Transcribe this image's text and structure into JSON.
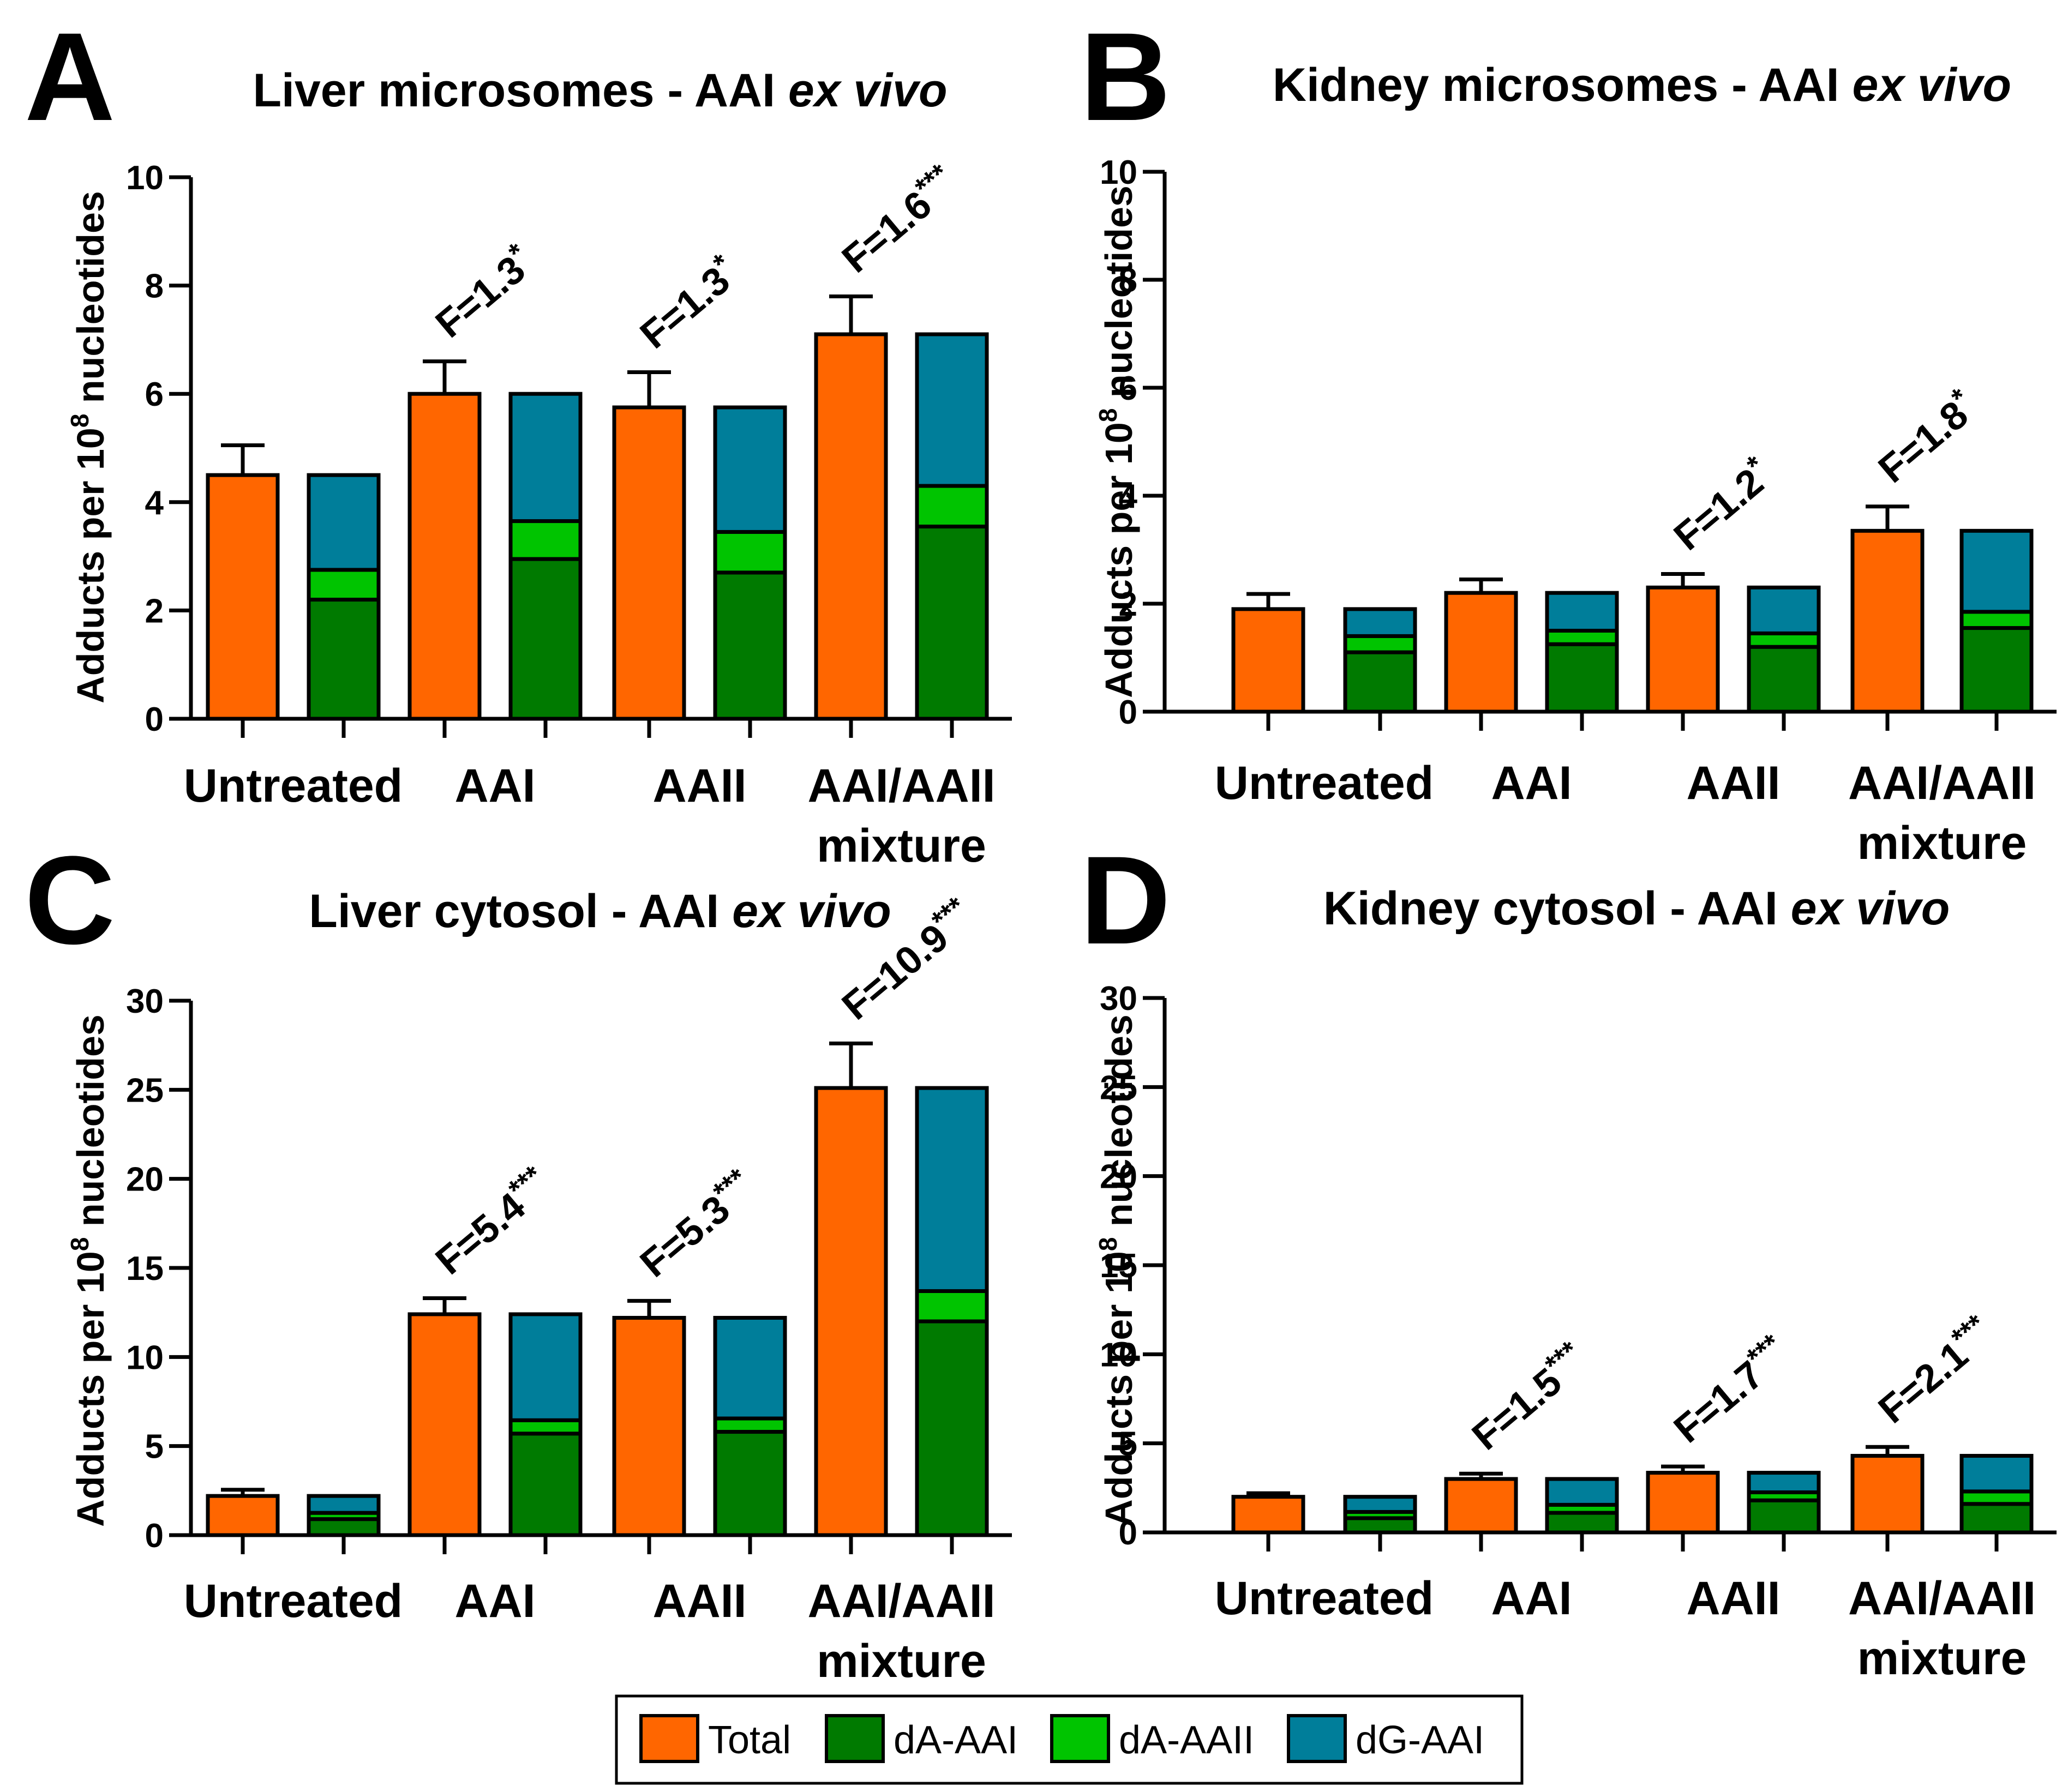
{
  "colors": {
    "total": "#FF6600",
    "dA-AAI": "#007A00",
    "dA-AAII": "#00C400",
    "dG-AAI": "#007E9A"
  },
  "chart_data": [
    {
      "id": "A",
      "type": "bar",
      "title": "Liver microsomes - AAI",
      "title_italic": "ex vivo",
      "ylabel": "Adducts per 10",
      "ylabel_sup": "8",
      "ylabel_rest": " nucleotides",
      "ylim": [
        0,
        10
      ],
      "yticks": [
        0,
        2,
        4,
        6,
        8,
        10
      ],
      "categories": [
        "Untreated",
        "AAI",
        "AAII",
        "AAI/AAII mixture"
      ],
      "category_lines": [
        [
          "Untreated"
        ],
        [
          "AAI"
        ],
        [
          "AAII"
        ],
        [
          "AAI/AAII",
          "mixture"
        ]
      ],
      "total": [
        4.5,
        6.0,
        5.75,
        7.1
      ],
      "total_error": [
        0.55,
        0.6,
        0.65,
        0.7
      ],
      "stack": {
        "dA-AAI": [
          2.2,
          2.95,
          2.7,
          3.55
        ],
        "dA-AAII": [
          0.55,
          0.7,
          0.75,
          0.75
        ],
        "dG-AAI": [
          1.75,
          2.35,
          2.3,
          2.8
        ]
      },
      "annotations": [
        {
          "category": 1,
          "base": "F=1.3",
          "sup": "*"
        },
        {
          "category": 2,
          "base": "F=1.3",
          "sup": "*"
        },
        {
          "category": 3,
          "base": "F=1.6",
          "sup": "***"
        }
      ]
    },
    {
      "id": "B",
      "type": "bar",
      "title": "Kidney microsomes - AAI",
      "title_italic": "ex vivo",
      "ylabel": "Adducts per 10",
      "ylabel_sup": "8",
      "ylabel_rest": " nucleotides",
      "ylim": [
        0,
        10
      ],
      "yticks": [
        0,
        2,
        4,
        6,
        8,
        10
      ],
      "categories": [
        "Untreated",
        "AAI",
        "AAII",
        "AAI/AAII mixture"
      ],
      "category_lines": [
        [
          "Untreated"
        ],
        [
          "AAI"
        ],
        [
          "AAII"
        ],
        [
          "AAI/AAII",
          "mixture"
        ]
      ],
      "total": [
        1.9,
        2.2,
        2.3,
        3.35
      ],
      "total_error": [
        0.28,
        0.25,
        0.25,
        0.45
      ],
      "stack": {
        "dA-AAI": [
          1.1,
          1.25,
          1.2,
          1.55
        ],
        "dA-AAII": [
          0.3,
          0.25,
          0.25,
          0.3
        ],
        "dG-AAI": [
          0.5,
          0.7,
          0.85,
          1.5
        ]
      },
      "annotations": [
        {
          "category": 2,
          "base": "F=1.2",
          "sup": "*"
        },
        {
          "category": 3,
          "base": "F=1.8",
          "sup": "*"
        }
      ]
    },
    {
      "id": "C",
      "type": "bar",
      "title": "Liver cytosol - AAI",
      "title_italic": "ex vivo",
      "ylabel": "Adducts per 10",
      "ylabel_sup": "8",
      "ylabel_rest": " nucleotides",
      "ylim": [
        0,
        30
      ],
      "yticks": [
        0,
        5,
        10,
        15,
        20,
        25,
        30
      ],
      "categories": [
        "Untreated",
        "AAI",
        "AAII",
        "AAI/AAII mixture"
      ],
      "category_lines": [
        [
          "Untreated"
        ],
        [
          "AAI"
        ],
        [
          "AAII"
        ],
        [
          "AAI/AAII",
          "mixture"
        ]
      ],
      "total": [
        2.2,
        12.4,
        12.2,
        25.1
      ],
      "total_error": [
        0.35,
        0.9,
        0.95,
        2.5
      ],
      "stack": {
        "dA-AAI": [
          0.9,
          5.7,
          5.8,
          12.0
        ],
        "dA-AAII": [
          0.35,
          0.75,
          0.75,
          1.7
        ],
        "dG-AAI": [
          0.95,
          5.95,
          5.65,
          11.4
        ]
      },
      "annotations": [
        {
          "category": 1,
          "base": "F=5.4",
          "sup": "***"
        },
        {
          "category": 2,
          "base": "F=5.3",
          "sup": "***"
        },
        {
          "category": 3,
          "base": "F=10.9",
          "sup": "***"
        }
      ]
    },
    {
      "id": "D",
      "type": "bar",
      "title": "Kidney cytosol - AAI",
      "title_italic": "ex vivo",
      "ylabel": "Adducts per 10",
      "ylabel_sup": "8",
      "ylabel_rest": " nucleotides",
      "ylim": [
        0,
        30
      ],
      "yticks": [
        0,
        5,
        10,
        15,
        20,
        25,
        30
      ],
      "categories": [
        "Untreated",
        "AAI",
        "AAII",
        "AAI/AAII mixture"
      ],
      "category_lines": [
        [
          "Untreated"
        ],
        [
          "AAI"
        ],
        [
          "AAII"
        ],
        [
          "AAI/AAII",
          "mixture"
        ]
      ],
      "total": [
        2.0,
        3.0,
        3.35,
        4.3
      ],
      "total_error": [
        0.2,
        0.3,
        0.35,
        0.5
      ],
      "stack": {
        "dA-AAI": [
          0.8,
          1.1,
          1.8,
          1.6
        ],
        "dA-AAII": [
          0.35,
          0.45,
          0.45,
          0.7
        ],
        "dG-AAI": [
          0.85,
          1.45,
          1.1,
          2.0
        ]
      },
      "annotations": [
        {
          "category": 1,
          "base": "F=1.5",
          "sup": "***"
        },
        {
          "category": 2,
          "base": "F=1.7",
          "sup": "***"
        },
        {
          "category": 3,
          "base": "F=2.1",
          "sup": "***"
        }
      ]
    }
  ],
  "legend": {
    "items": [
      {
        "key": "total",
        "label": "Total"
      },
      {
        "key": "dA-AAI",
        "label": "dA-AAI"
      },
      {
        "key": "dA-AAII",
        "label": "dA-AAII"
      },
      {
        "key": "dG-AAI",
        "label": "dG-AAI"
      }
    ]
  }
}
